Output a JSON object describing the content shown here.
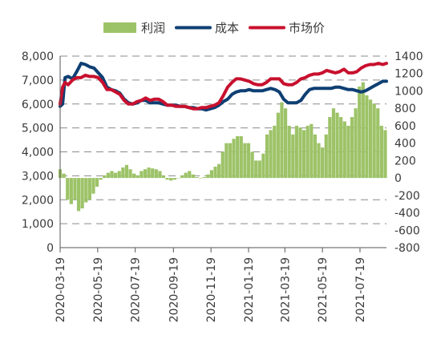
{
  "chart_data": {
    "type": "bar+line",
    "legend": {
      "placement": "top",
      "items": [
        {
          "label": "利润",
          "kind": "bar",
          "color": "#9dc368"
        },
        {
          "label": "成本",
          "kind": "line",
          "color": "#0e3f73"
        },
        {
          "label": "市场价",
          "kind": "line",
          "color": "#c8102e"
        }
      ]
    },
    "left_axis": {
      "ylim": [
        0,
        8000
      ],
      "ticks": [
        "0",
        "1,000",
        "2,000",
        "3,000",
        "4,000",
        "5,000",
        "6,000",
        "7,000",
        "8,000"
      ]
    },
    "right_axis": {
      "ylim": [
        -800,
        1400
      ],
      "ticks": [
        "-800",
        "-600",
        "-400",
        "-200",
        "0",
        "200",
        "400",
        "600",
        "800",
        "1000",
        "1200",
        "1400"
      ]
    },
    "x_axis": {
      "range": [
        "2020-03-19",
        "2021-08-31"
      ],
      "ticks": [
        "2020-03-19",
        "2020-05-19",
        "2020-07-19",
        "2020-09-19",
        "2020-11-19",
        "2021-01-19",
        "2021-03-19",
        "2021-05-19",
        "2021-07-19"
      ]
    },
    "grid": "horizontal dashed",
    "series": [
      {
        "name": "成本",
        "type": "line",
        "axis": "left",
        "points": [
          [
            "2020-03-19",
            5900
          ],
          [
            "2020-03-23",
            6000
          ],
          [
            "2020-03-27",
            7100
          ],
          [
            "2020-04-01",
            7150
          ],
          [
            "2020-04-08",
            7050
          ],
          [
            "2020-04-15",
            7350
          ],
          [
            "2020-04-22",
            7700
          ],
          [
            "2020-04-29",
            7650
          ],
          [
            "2020-05-06",
            7550
          ],
          [
            "2020-05-13",
            7500
          ],
          [
            "2020-05-20",
            7300
          ],
          [
            "2020-05-27",
            7100
          ],
          [
            "2020-06-03",
            6700
          ],
          [
            "2020-06-10",
            6600
          ],
          [
            "2020-06-17",
            6550
          ],
          [
            "2020-06-24",
            6450
          ],
          [
            "2020-07-01",
            6200
          ],
          [
            "2020-07-08",
            6050
          ],
          [
            "2020-07-15",
            6000
          ],
          [
            "2020-07-22",
            6050
          ],
          [
            "2020-07-29",
            6150
          ],
          [
            "2020-08-05",
            6150
          ],
          [
            "2020-08-12",
            6050
          ],
          [
            "2020-08-19",
            6050
          ],
          [
            "2020-08-26",
            6050
          ],
          [
            "2020-09-02",
            6000
          ],
          [
            "2020-09-09",
            5950
          ],
          [
            "2020-09-16",
            5950
          ],
          [
            "2020-09-23",
            5950
          ],
          [
            "2020-09-30",
            5900
          ],
          [
            "2020-10-07",
            5900
          ],
          [
            "2020-10-14",
            5850
          ],
          [
            "2020-10-21",
            5850
          ],
          [
            "2020-10-28",
            5800
          ],
          [
            "2020-11-04",
            5800
          ],
          [
            "2020-11-11",
            5750
          ],
          [
            "2020-11-18",
            5800
          ],
          [
            "2020-11-25",
            5850
          ],
          [
            "2020-12-02",
            5950
          ],
          [
            "2020-12-09",
            6100
          ],
          [
            "2020-12-16",
            6200
          ],
          [
            "2020-12-23",
            6400
          ],
          [
            "2020-12-30",
            6500
          ],
          [
            "2021-01-06",
            6550
          ],
          [
            "2021-01-13",
            6550
          ],
          [
            "2021-01-20",
            6600
          ],
          [
            "2021-01-27",
            6550
          ],
          [
            "2021-02-03",
            6550
          ],
          [
            "2021-02-10",
            6550
          ],
          [
            "2021-02-17",
            6600
          ],
          [
            "2021-02-24",
            6650
          ],
          [
            "2021-03-03",
            6600
          ],
          [
            "2021-03-10",
            6500
          ],
          [
            "2021-03-17",
            6200
          ],
          [
            "2021-03-24",
            6050
          ],
          [
            "2021-03-31",
            6050
          ],
          [
            "2021-04-07",
            6050
          ],
          [
            "2021-04-14",
            6150
          ],
          [
            "2021-04-21",
            6400
          ],
          [
            "2021-04-28",
            6600
          ],
          [
            "2021-05-05",
            6650
          ],
          [
            "2021-05-12",
            6650
          ],
          [
            "2021-05-19",
            6650
          ],
          [
            "2021-05-26",
            6650
          ],
          [
            "2021-06-02",
            6650
          ],
          [
            "2021-06-09",
            6700
          ],
          [
            "2021-06-16",
            6700
          ],
          [
            "2021-06-23",
            6650
          ],
          [
            "2021-06-30",
            6600
          ],
          [
            "2021-07-07",
            6600
          ],
          [
            "2021-07-14",
            6550
          ],
          [
            "2021-07-21",
            6500
          ],
          [
            "2021-07-28",
            6550
          ],
          [
            "2021-08-04",
            6650
          ],
          [
            "2021-08-11",
            6750
          ],
          [
            "2021-08-18",
            6850
          ],
          [
            "2021-08-25",
            6950
          ],
          [
            "2021-08-31",
            6950
          ]
        ]
      },
      {
        "name": "市场价",
        "type": "line",
        "axis": "left",
        "points": [
          [
            "2020-03-19",
            6000
          ],
          [
            "2020-03-23",
            6700
          ],
          [
            "2020-03-27",
            6900
          ],
          [
            "2020-04-01",
            6800
          ],
          [
            "2020-04-08",
            7000
          ],
          [
            "2020-04-15",
            7100
          ],
          [
            "2020-04-22",
            7100
          ],
          [
            "2020-04-29",
            7200
          ],
          [
            "2020-05-06",
            7150
          ],
          [
            "2020-05-13",
            7150
          ],
          [
            "2020-05-20",
            7100
          ],
          [
            "2020-05-27",
            6900
          ],
          [
            "2020-06-03",
            6600
          ],
          [
            "2020-06-10",
            6600
          ],
          [
            "2020-06-17",
            6500
          ],
          [
            "2020-06-24",
            6400
          ],
          [
            "2020-07-01",
            6150
          ],
          [
            "2020-07-08",
            6000
          ],
          [
            "2020-07-15",
            6000
          ],
          [
            "2020-07-22",
            6100
          ],
          [
            "2020-07-29",
            6150
          ],
          [
            "2020-08-05",
            6250
          ],
          [
            "2020-08-12",
            6150
          ],
          [
            "2020-08-19",
            6200
          ],
          [
            "2020-08-26",
            6200
          ],
          [
            "2020-09-02",
            6100
          ],
          [
            "2020-09-09",
            5950
          ],
          [
            "2020-09-16",
            5950
          ],
          [
            "2020-09-23",
            5900
          ],
          [
            "2020-09-30",
            5900
          ],
          [
            "2020-10-07",
            5900
          ],
          [
            "2020-10-14",
            5850
          ],
          [
            "2020-10-21",
            5800
          ],
          [
            "2020-10-28",
            5800
          ],
          [
            "2020-11-04",
            5850
          ],
          [
            "2020-11-11",
            5850
          ],
          [
            "2020-11-18",
            5900
          ],
          [
            "2020-11-25",
            5950
          ],
          [
            "2020-12-02",
            6050
          ],
          [
            "2020-12-09",
            6350
          ],
          [
            "2020-12-16",
            6700
          ],
          [
            "2020-12-23",
            6900
          ],
          [
            "2020-12-30",
            7050
          ],
          [
            "2021-01-06",
            7050
          ],
          [
            "2021-01-13",
            7000
          ],
          [
            "2021-01-20",
            6950
          ],
          [
            "2021-01-27",
            6850
          ],
          [
            "2021-02-03",
            6800
          ],
          [
            "2021-02-10",
            6800
          ],
          [
            "2021-02-17",
            6900
          ],
          [
            "2021-02-24",
            7050
          ],
          [
            "2021-03-03",
            7050
          ],
          [
            "2021-03-10",
            7050
          ],
          [
            "2021-03-17",
            6850
          ],
          [
            "2021-03-24",
            6800
          ],
          [
            "2021-03-31",
            6800
          ],
          [
            "2021-04-07",
            6900
          ],
          [
            "2021-04-14",
            7050
          ],
          [
            "2021-04-21",
            7100
          ],
          [
            "2021-04-28",
            7200
          ],
          [
            "2021-05-05",
            7250
          ],
          [
            "2021-05-12",
            7250
          ],
          [
            "2021-05-19",
            7300
          ],
          [
            "2021-05-26",
            7400
          ],
          [
            "2021-06-02",
            7350
          ],
          [
            "2021-06-09",
            7300
          ],
          [
            "2021-06-16",
            7350
          ],
          [
            "2021-06-23",
            7450
          ],
          [
            "2021-06-30",
            7300
          ],
          [
            "2021-07-07",
            7300
          ],
          [
            "2021-07-14",
            7350
          ],
          [
            "2021-07-21",
            7500
          ],
          [
            "2021-07-28",
            7600
          ],
          [
            "2021-08-04",
            7650
          ],
          [
            "2021-08-11",
            7650
          ],
          [
            "2021-08-18",
            7700
          ],
          [
            "2021-08-25",
            7650
          ],
          [
            "2021-08-31",
            7700
          ]
        ]
      },
      {
        "name": "利润",
        "type": "bar",
        "axis": "right",
        "points": [
          [
            "2020-03-19",
            100
          ],
          [
            "2020-03-25",
            50
          ],
          [
            "2020-03-31",
            -250
          ],
          [
            "2020-04-06",
            -300
          ],
          [
            "2020-04-12",
            -250
          ],
          [
            "2020-04-18",
            -380
          ],
          [
            "2020-04-24",
            -350
          ],
          [
            "2020-04-30",
            -280
          ],
          [
            "2020-05-06",
            -250
          ],
          [
            "2020-05-12",
            -180
          ],
          [
            "2020-05-18",
            -100
          ],
          [
            "2020-05-24",
            -20
          ],
          [
            "2020-05-30",
            30
          ],
          [
            "2020-06-05",
            60
          ],
          [
            "2020-06-11",
            80
          ],
          [
            "2020-06-17",
            60
          ],
          [
            "2020-06-23",
            80
          ],
          [
            "2020-06-29",
            120
          ],
          [
            "2020-07-05",
            150
          ],
          [
            "2020-07-11",
            100
          ],
          [
            "2020-07-17",
            50
          ],
          [
            "2020-07-23",
            30
          ],
          [
            "2020-07-29",
            80
          ],
          [
            "2020-08-04",
            100
          ],
          [
            "2020-08-10",
            120
          ],
          [
            "2020-08-16",
            110
          ],
          [
            "2020-08-22",
            100
          ],
          [
            "2020-08-28",
            80
          ],
          [
            "2020-09-03",
            30
          ],
          [
            "2020-09-09",
            -20
          ],
          [
            "2020-09-15",
            -30
          ],
          [
            "2020-09-21",
            -20
          ],
          [
            "2020-09-27",
            0
          ],
          [
            "2020-10-03",
            30
          ],
          [
            "2020-10-09",
            60
          ],
          [
            "2020-10-15",
            80
          ],
          [
            "2020-10-21",
            40
          ],
          [
            "2020-10-27",
            10
          ],
          [
            "2020-11-02",
            0
          ],
          [
            "2020-11-08",
            10
          ],
          [
            "2020-11-14",
            40
          ],
          [
            "2020-11-20",
            90
          ],
          [
            "2020-11-26",
            130
          ],
          [
            "2020-12-02",
            160
          ],
          [
            "2020-12-08",
            300
          ],
          [
            "2020-12-14",
            400
          ],
          [
            "2020-12-20",
            400
          ],
          [
            "2020-12-26",
            450
          ],
          [
            "2021-01-01",
            480
          ],
          [
            "2021-01-07",
            480
          ],
          [
            "2021-01-13",
            400
          ],
          [
            "2021-01-19",
            400
          ],
          [
            "2021-01-25",
            300
          ],
          [
            "2021-01-31",
            200
          ],
          [
            "2021-02-06",
            200
          ],
          [
            "2021-02-12",
            280
          ],
          [
            "2021-02-18",
            500
          ],
          [
            "2021-02-24",
            550
          ],
          [
            "2021-03-02",
            600
          ],
          [
            "2021-03-08",
            750
          ],
          [
            "2021-03-14",
            870
          ],
          [
            "2021-03-20",
            800
          ],
          [
            "2021-03-26",
            600
          ],
          [
            "2021-04-01",
            500
          ],
          [
            "2021-04-07",
            600
          ],
          [
            "2021-04-13",
            580
          ],
          [
            "2021-04-19",
            550
          ],
          [
            "2021-04-25",
            600
          ],
          [
            "2021-05-01",
            620
          ],
          [
            "2021-05-07",
            500
          ],
          [
            "2021-05-13",
            400
          ],
          [
            "2021-05-19",
            350
          ],
          [
            "2021-05-25",
            500
          ],
          [
            "2021-05-31",
            700
          ],
          [
            "2021-06-06",
            800
          ],
          [
            "2021-06-12",
            750
          ],
          [
            "2021-06-18",
            700
          ],
          [
            "2021-06-24",
            650
          ],
          [
            "2021-06-30",
            600
          ],
          [
            "2021-07-06",
            700
          ],
          [
            "2021-07-12",
            800
          ],
          [
            "2021-07-18",
            1050
          ],
          [
            "2021-07-24",
            1100
          ],
          [
            "2021-07-30",
            950
          ],
          [
            "2021-08-05",
            900
          ],
          [
            "2021-08-11",
            850
          ],
          [
            "2021-08-17",
            800
          ],
          [
            "2021-08-23",
            600
          ],
          [
            "2021-08-29",
            550
          ]
        ]
      }
    ]
  }
}
